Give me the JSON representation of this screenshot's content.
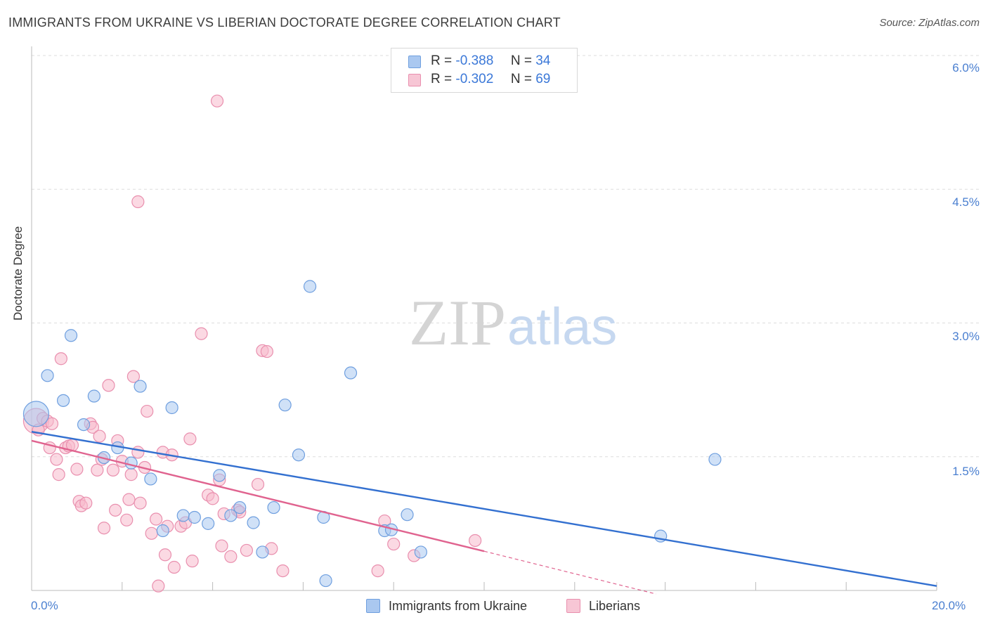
{
  "title": "IMMIGRANTS FROM UKRAINE VS LIBERIAN DOCTORATE DEGREE CORRELATION CHART",
  "source": "Source: ZipAtlas.com",
  "watermark": {
    "zip": "ZIP",
    "atlas": "atlas"
  },
  "colors": {
    "ukraine_fill": "#aac8f0",
    "ukraine_stroke": "#6f9fdf",
    "ukraine_line": "#3370d0",
    "liberian_fill": "#f7b9cc",
    "liberian_stroke": "#e98fae",
    "liberian_line": "#e0638f",
    "tick_text": "#4a7fd0",
    "grid": "#dddddd"
  },
  "legend": {
    "rows": [
      {
        "r_label": "R =",
        "r_value": "-0.388",
        "n_label": "N =",
        "n_value": "34"
      },
      {
        "r_label": "R =",
        "r_value": "-0.302",
        "n_label": "N =",
        "n_value": "69"
      }
    ]
  },
  "bottom_legend": {
    "ukraine": "Immigrants from Ukraine",
    "liberian": "Liberians"
  },
  "chart_data": {
    "type": "scatter",
    "title": "IMMIGRANTS FROM UKRAINE VS LIBERIAN DOCTORATE DEGREE CORRELATION CHART",
    "xlabel": "",
    "ylabel": "Doctorate Degree",
    "xlim": [
      0,
      20
    ],
    "ylim": [
      0,
      6.2
    ],
    "x_tick_labels": [
      "0.0%",
      "20.0%"
    ],
    "y_ticks": [
      1.5,
      3.0,
      4.5,
      6.0
    ],
    "y_tick_labels": [
      "1.5%",
      "3.0%",
      "4.5%",
      "6.0%"
    ],
    "grid": true,
    "legend_position": "top-center",
    "series": [
      {
        "name": "Immigrants from Ukraine",
        "R": -0.388,
        "N": 34,
        "trend": {
          "x": [
            0,
            20
          ],
          "y": [
            1.78,
            0.05
          ]
        },
        "points": [
          {
            "x": 0.1,
            "y": 1.98,
            "big": true
          },
          {
            "x": 0.35,
            "y": 2.41
          },
          {
            "x": 0.7,
            "y": 2.13
          },
          {
            "x": 0.87,
            "y": 2.86
          },
          {
            "x": 1.15,
            "y": 1.86
          },
          {
            "x": 1.38,
            "y": 2.18
          },
          {
            "x": 1.6,
            "y": 1.49
          },
          {
            "x": 1.9,
            "y": 1.6
          },
          {
            "x": 2.2,
            "y": 1.43
          },
          {
            "x": 2.4,
            "y": 2.29
          },
          {
            "x": 2.63,
            "y": 1.25
          },
          {
            "x": 2.9,
            "y": 0.67
          },
          {
            "x": 3.1,
            "y": 2.05
          },
          {
            "x": 3.35,
            "y": 0.84
          },
          {
            "x": 3.6,
            "y": 0.82
          },
          {
            "x": 3.9,
            "y": 0.75
          },
          {
            "x": 4.15,
            "y": 1.29
          },
          {
            "x": 4.4,
            "y": 0.84
          },
          {
            "x": 4.6,
            "y": 0.93
          },
          {
            "x": 4.9,
            "y": 0.76
          },
          {
            "x": 5.1,
            "y": 0.43
          },
          {
            "x": 5.35,
            "y": 0.93
          },
          {
            "x": 5.6,
            "y": 2.08
          },
          {
            "x": 5.9,
            "y": 1.52
          },
          {
            "x": 6.15,
            "y": 3.41
          },
          {
            "x": 6.45,
            "y": 0.82
          },
          {
            "x": 6.5,
            "y": 0.11
          },
          {
            "x": 7.05,
            "y": 2.44
          },
          {
            "x": 7.8,
            "y": 0.67
          },
          {
            "x": 7.95,
            "y": 0.68
          },
          {
            "x": 8.3,
            "y": 0.85
          },
          {
            "x": 8.6,
            "y": 0.43
          },
          {
            "x": 13.9,
            "y": 0.61
          },
          {
            "x": 15.1,
            "y": 1.47
          }
        ]
      },
      {
        "name": "Liberians",
        "R": -0.302,
        "N": 69,
        "trend": {
          "x": [
            0,
            10
          ],
          "y": [
            1.68,
            0.44
          ]
        },
        "trend_dashed_extension": {
          "x": [
            10,
            13.8
          ],
          "y": [
            0.44,
            -0.04
          ]
        },
        "points": [
          {
            "x": 0.1,
            "y": 1.9,
            "big": true
          },
          {
            "x": 0.15,
            "y": 1.8
          },
          {
            "x": 0.25,
            "y": 1.93
          },
          {
            "x": 0.35,
            "y": 1.9
          },
          {
            "x": 0.4,
            "y": 1.6
          },
          {
            "x": 0.45,
            "y": 1.87
          },
          {
            "x": 0.55,
            "y": 1.47
          },
          {
            "x": 0.6,
            "y": 1.3
          },
          {
            "x": 0.65,
            "y": 2.6
          },
          {
            "x": 0.75,
            "y": 1.6
          },
          {
            "x": 0.82,
            "y": 1.62
          },
          {
            "x": 0.9,
            "y": 1.63
          },
          {
            "x": 1.0,
            "y": 1.36
          },
          {
            "x": 1.05,
            "y": 1.0
          },
          {
            "x": 1.1,
            "y": 0.95
          },
          {
            "x": 1.2,
            "y": 0.98
          },
          {
            "x": 1.3,
            "y": 1.87
          },
          {
            "x": 1.35,
            "y": 1.83
          },
          {
            "x": 1.45,
            "y": 1.35
          },
          {
            "x": 1.5,
            "y": 1.73
          },
          {
            "x": 1.55,
            "y": 1.47
          },
          {
            "x": 1.6,
            "y": 0.7
          },
          {
            "x": 1.7,
            "y": 2.3
          },
          {
            "x": 1.8,
            "y": 1.35
          },
          {
            "x": 1.85,
            "y": 0.9
          },
          {
            "x": 1.9,
            "y": 1.68
          },
          {
            "x": 2.0,
            "y": 1.45
          },
          {
            "x": 2.1,
            "y": 0.79
          },
          {
            "x": 2.15,
            "y": 1.02
          },
          {
            "x": 2.2,
            "y": 1.3
          },
          {
            "x": 2.25,
            "y": 2.4
          },
          {
            "x": 2.35,
            "y": 1.55
          },
          {
            "x": 2.4,
            "y": 0.98
          },
          {
            "x": 2.5,
            "y": 1.38
          },
          {
            "x": 2.55,
            "y": 2.01
          },
          {
            "x": 2.65,
            "y": 0.64
          },
          {
            "x": 2.75,
            "y": 0.8
          },
          {
            "x": 2.8,
            "y": 0.05
          },
          {
            "x": 2.9,
            "y": 1.55
          },
          {
            "x": 2.95,
            "y": 0.4
          },
          {
            "x": 3.0,
            "y": 0.72
          },
          {
            "x": 3.1,
            "y": 1.52
          },
          {
            "x": 3.15,
            "y": 0.26
          },
          {
            "x": 3.3,
            "y": 0.72
          },
          {
            "x": 3.4,
            "y": 0.76
          },
          {
            "x": 3.5,
            "y": 1.7
          },
          {
            "x": 3.55,
            "y": 0.33
          },
          {
            "x": 3.75,
            "y": 2.88
          },
          {
            "x": 3.9,
            "y": 1.07
          },
          {
            "x": 4.0,
            "y": 1.03
          },
          {
            "x": 4.1,
            "y": 5.49
          },
          {
            "x": 4.15,
            "y": 1.24
          },
          {
            "x": 4.2,
            "y": 0.5
          },
          {
            "x": 4.25,
            "y": 0.86
          },
          {
            "x": 4.4,
            "y": 0.38
          },
          {
            "x": 4.55,
            "y": 0.9
          },
          {
            "x": 4.6,
            "y": 0.88
          },
          {
            "x": 4.75,
            "y": 0.45
          },
          {
            "x": 5.0,
            "y": 1.19
          },
          {
            "x": 5.1,
            "y": 2.69
          },
          {
            "x": 5.2,
            "y": 2.68
          },
          {
            "x": 5.3,
            "y": 0.47
          },
          {
            "x": 5.55,
            "y": 0.22
          },
          {
            "x": 2.35,
            "y": 4.36
          },
          {
            "x": 7.65,
            "y": 0.22
          },
          {
            "x": 7.8,
            "y": 0.78
          },
          {
            "x": 8.0,
            "y": 0.52
          },
          {
            "x": 8.45,
            "y": 0.39
          },
          {
            "x": 9.8,
            "y": 0.56
          }
        ]
      }
    ]
  }
}
